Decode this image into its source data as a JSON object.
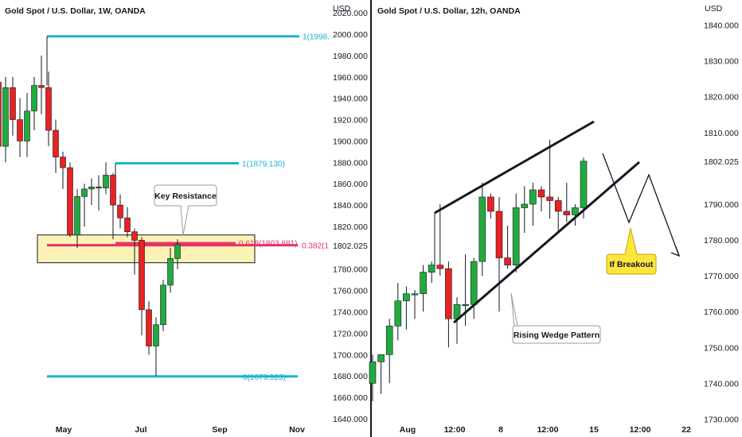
{
  "colors": {
    "up": "#22ab3d",
    "down": "#e82222",
    "wick": "#131722",
    "fib_line": "#1ab4d0",
    "fib_red": "#e8326a",
    "zone_fill": "#fbf3b5",
    "zone_border": "#131722",
    "divider": "#131722",
    "callout_yellow": "#fbe53f"
  },
  "chart_data": [
    {
      "type": "candlestick",
      "title": "Gold Spot / U.S. Dollar, 1W, OANDA",
      "currency": "USD",
      "x_ticks": [
        "May",
        "Jul",
        "Sep",
        "Nov"
      ],
      "y_ticks": [
        "2020.000",
        "2000.000",
        "1980.000",
        "1960.000",
        "1940.000",
        "1920.000",
        "1900.000",
        "1880.000",
        "1860.000",
        "1840.000",
        "1820.000",
        "1802.025",
        "1780.000",
        "1760.000",
        "1740.000",
        "1720.000",
        "1700.000",
        "1680.000",
        "1660.000",
        "1640.000"
      ],
      "ylim": [
        1634,
        2032
      ],
      "candles": [
        {
          "o": 1955,
          "h": 1972,
          "l": 1870,
          "c": 1895
        },
        {
          "o": 1895,
          "h": 1960,
          "l": 1880,
          "c": 1950
        },
        {
          "o": 1950,
          "h": 1960,
          "l": 1905,
          "c": 1920
        },
        {
          "o": 1920,
          "h": 1940,
          "l": 1885,
          "c": 1900
        },
        {
          "o": 1900,
          "h": 1945,
          "l": 1885,
          "c": 1928
        },
        {
          "o": 1928,
          "h": 1960,
          "l": 1910,
          "c": 1952
        },
        {
          "o": 1952,
          "h": 1980,
          "l": 1925,
          "c": 1950
        },
        {
          "o": 1950,
          "h": 1965,
          "l": 1895,
          "c": 1910
        },
        {
          "o": 1910,
          "h": 1920,
          "l": 1870,
          "c": 1885
        },
        {
          "o": 1885,
          "h": 1890,
          "l": 1855,
          "c": 1875
        },
        {
          "o": 1875,
          "h": 1880,
          "l": 1810,
          "c": 1812
        },
        {
          "o": 1812,
          "h": 1855,
          "l": 1800,
          "c": 1848
        },
        {
          "o": 1848,
          "h": 1860,
          "l": 1820,
          "c": 1855
        },
        {
          "o": 1855,
          "h": 1865,
          "l": 1840,
          "c": 1857
        },
        {
          "o": 1857,
          "h": 1868,
          "l": 1835,
          "c": 1856
        },
        {
          "o": 1856,
          "h": 1880,
          "l": 1850,
          "c": 1868
        },
        {
          "o": 1868,
          "h": 1870,
          "l": 1808,
          "c": 1840
        },
        {
          "o": 1840,
          "h": 1850,
          "l": 1818,
          "c": 1828
        },
        {
          "o": 1828,
          "h": 1838,
          "l": 1810,
          "c": 1815
        },
        {
          "o": 1815,
          "h": 1818,
          "l": 1775,
          "c": 1807
        },
        {
          "o": 1807,
          "h": 1810,
          "l": 1718,
          "c": 1742
        },
        {
          "o": 1742,
          "h": 1750,
          "l": 1700,
          "c": 1708
        },
        {
          "o": 1708,
          "h": 1735,
          "l": 1680,
          "c": 1728
        },
        {
          "o": 1728,
          "h": 1770,
          "l": 1722,
          "c": 1765
        },
        {
          "o": 1765,
          "h": 1800,
          "l": 1758,
          "c": 1790
        },
        {
          "o": 1790,
          "h": 1808,
          "l": 1780,
          "c": 1803
        }
      ],
      "fib_levels": [
        {
          "label": "1(1998.",
          "value": 1998.0
        },
        {
          "label": "1(1879.130)",
          "value": 1879.13
        },
        {
          "label": "0.618(1803.881)",
          "value": 1803.881
        },
        {
          "label": "0(1679.523)",
          "value": 1679.523
        }
      ],
      "horizontal_label": "0.382(1",
      "annotation": "Key Resistance",
      "resistance_zone": [
        1786,
        1812
      ],
      "current_price": "1802.025"
    },
    {
      "type": "candlestick",
      "title": "Gold Spot / U.S. Dollar, 12h, OANDA",
      "currency": "USD",
      "x_ticks": [
        "Aug",
        "12:00",
        "8",
        "12:00",
        "15",
        "12:00",
        "22"
      ],
      "y_ticks": [
        "1840.000",
        "1830.000",
        "1820.000",
        "1810.000",
        "1802.025",
        "1790.000",
        "1780.000",
        "1770.000",
        "1760.000",
        "1750.000",
        "1740.000",
        "1730.000"
      ],
      "ylim": [
        1725,
        1847
      ],
      "candles": [
        {
          "o": 1740,
          "h": 1748,
          "l": 1735,
          "c": 1746
        },
        {
          "o": 1746,
          "h": 1748,
          "l": 1737,
          "c": 1748
        },
        {
          "o": 1748,
          "h": 1758,
          "l": 1740,
          "c": 1756
        },
        {
          "o": 1756,
          "h": 1768,
          "l": 1752,
          "c": 1763
        },
        {
          "o": 1763,
          "h": 1767,
          "l": 1755,
          "c": 1765
        },
        {
          "o": 1765,
          "h": 1766,
          "l": 1758,
          "c": 1765
        },
        {
          "o": 1765,
          "h": 1773,
          "l": 1760,
          "c": 1771
        },
        {
          "o": 1771,
          "h": 1774,
          "l": 1768,
          "c": 1773
        },
        {
          "o": 1773,
          "h": 1790,
          "l": 1770,
          "c": 1772
        },
        {
          "o": 1772,
          "h": 1774,
          "l": 1750,
          "c": 1758
        },
        {
          "o": 1758,
          "h": 1764,
          "l": 1751,
          "c": 1762
        },
        {
          "o": 1762,
          "h": 1776,
          "l": 1756,
          "c": 1762
        },
        {
          "o": 1762,
          "h": 1775,
          "l": 1758,
          "c": 1774
        },
        {
          "o": 1774,
          "h": 1796,
          "l": 1770,
          "c": 1792
        },
        {
          "o": 1792,
          "h": 1793,
          "l": 1786,
          "c": 1788
        },
        {
          "o": 1788,
          "h": 1792,
          "l": 1760,
          "c": 1775
        },
        {
          "o": 1775,
          "h": 1784,
          "l": 1772,
          "c": 1773
        },
        {
          "o": 1773,
          "h": 1793,
          "l": 1771,
          "c": 1789
        },
        {
          "o": 1789,
          "h": 1795,
          "l": 1782,
          "c": 1790
        },
        {
          "o": 1790,
          "h": 1796,
          "l": 1784,
          "c": 1794
        },
        {
          "o": 1794,
          "h": 1795,
          "l": 1788,
          "c": 1792
        },
        {
          "o": 1792,
          "h": 1808,
          "l": 1786,
          "c": 1791
        },
        {
          "o": 1791,
          "h": 1792,
          "l": 1782,
          "c": 1788
        },
        {
          "o": 1788,
          "h": 1796,
          "l": 1785,
          "c": 1787
        },
        {
          "o": 1787,
          "h": 1790,
          "l": 1784,
          "c": 1789
        },
        {
          "o": 1789,
          "h": 1803,
          "l": 1786,
          "c": 1802
        }
      ],
      "pattern_label": "Rising Wedge Pattern",
      "breakout_label": "If Breakout",
      "current_price": "1802.025"
    }
  ]
}
